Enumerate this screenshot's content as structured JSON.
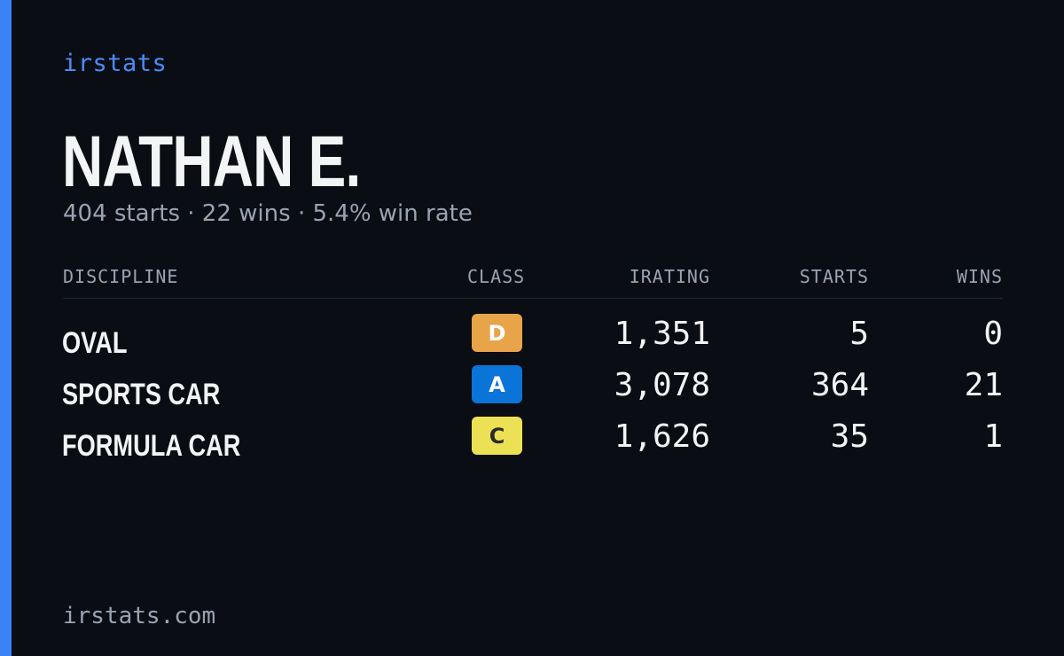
{
  "brand": "irstats",
  "driver": {
    "name": "NATHAN E.",
    "starts_text": "404 starts",
    "wins_text": "22 wins",
    "win_rate_text": "5.4% win rate",
    "separator": "·"
  },
  "table": {
    "headers": {
      "discipline": "DISCIPLINE",
      "class": "CLASS",
      "irating": "IRATING",
      "starts": "STARTS",
      "wins": "WINS"
    },
    "rows": [
      {
        "discipline": "OVAL",
        "class": "D",
        "irating": "1,351",
        "starts": "5",
        "wins": "0",
        "class_color": "#e8a448"
      },
      {
        "discipline": "SPORTS CAR",
        "class": "A",
        "irating": "3,078",
        "starts": "364",
        "wins": "21",
        "class_color": "#0b74d8"
      },
      {
        "discipline": "FORMULA CAR",
        "class": "C",
        "irating": "1,626",
        "starts": "35",
        "wins": "1",
        "class_color": "#ece154"
      }
    ]
  },
  "footer": "irstats.com",
  "colors": {
    "accent": "#3b82f6",
    "background": "#0a0d14",
    "text_primary": "#f3f4f6",
    "text_muted": "#9aa3b2"
  }
}
